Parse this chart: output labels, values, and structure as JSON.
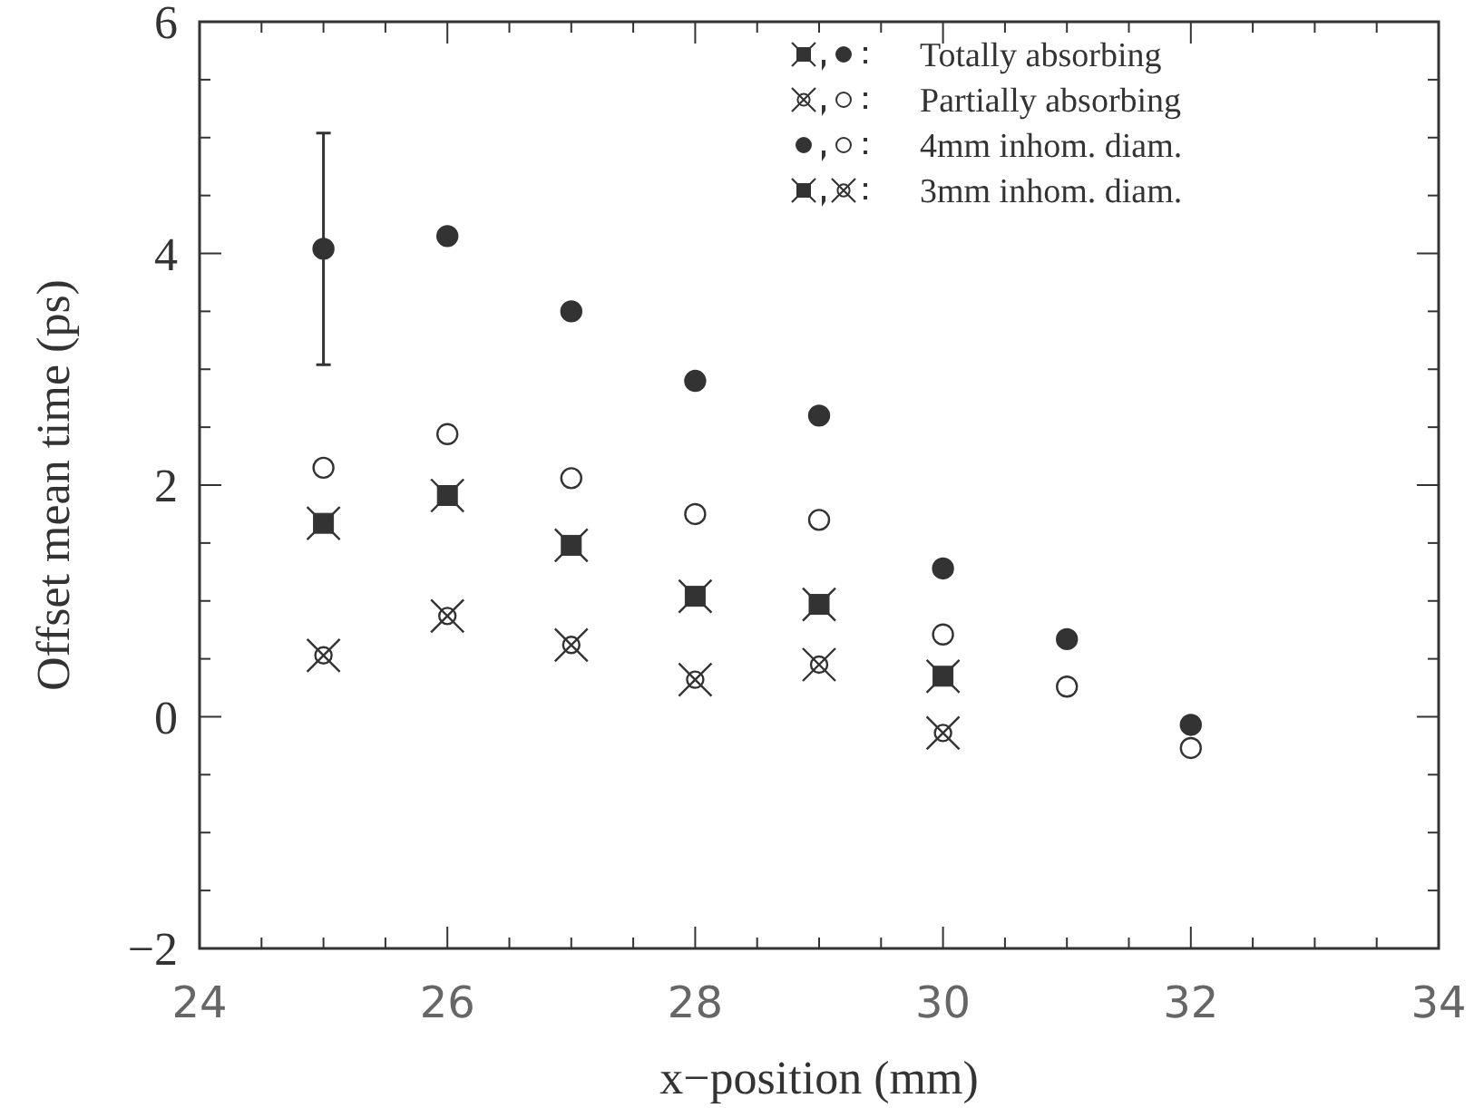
{
  "chart_data": {
    "type": "scatter",
    "xlabel": "x−position (mm)",
    "ylabel": "Offset mean time (ps)",
    "xlim": [
      24,
      34
    ],
    "ylim": [
      -2,
      6
    ],
    "xticks": [
      24,
      {
        "value": 24.5,
        "label": null
      },
      {
        "value": 25,
        "label": null
      },
      {
        "value": 25.5,
        "label": null
      },
      26,
      {
        "value": 26.5,
        "label": null
      },
      {
        "value": 27,
        "label": null
      },
      {
        "value": 27.5,
        "label": null
      },
      28,
      {
        "value": 28.5,
        "label": null
      },
      {
        "value": 29,
        "label": null
      },
      {
        "value": 29.5,
        "label": null
      },
      30,
      {
        "value": 30.5,
        "label": null
      },
      {
        "value": 31,
        "label": null
      },
      {
        "value": 31.5,
        "label": null
      },
      32,
      {
        "value": 32.5,
        "label": null
      },
      {
        "value": 33,
        "label": null
      },
      {
        "value": 33.5,
        "label": null
      },
      34
    ],
    "yticks": [
      {
        "value": -2,
        "label": "−2"
      },
      {
        "value": -1.5,
        "label": null
      },
      {
        "value": -1,
        "label": null
      },
      {
        "value": -0.5,
        "label": null
      },
      0,
      {
        "value": 0.5,
        "label": null
      },
      {
        "value": 1,
        "label": null
      },
      {
        "value": 1.5,
        "label": null
      },
      2,
      {
        "value": 2.5,
        "label": null
      },
      {
        "value": 3,
        "label": null
      },
      {
        "value": 3.5,
        "label": null
      },
      4,
      {
        "value": 4.5,
        "label": null
      },
      {
        "value": 5,
        "label": null
      },
      {
        "value": 5.5,
        "label": null
      },
      6
    ],
    "grid": false,
    "annotations": [
      "Totally absorbing",
      "Partially absorbing",
      "4mm inhom. diam.",
      "3mm inhom. diam."
    ],
    "series": [
      {
        "color": "#333333",
        "marker": "circle",
        "x": [
          25,
          26,
          27,
          28,
          29,
          30,
          31,
          32
        ],
        "values": [
          4.04,
          4.15,
          3.5,
          2.9,
          2.6,
          1.28,
          0.67,
          -0.07
        ],
        "errors": [
          1.0,
          null,
          null,
          null,
          null,
          null,
          null,
          null
        ]
      },
      {
        "color": "#ffffff",
        "marker": "circle",
        "x": [
          25,
          26,
          27,
          28,
          29,
          30,
          31,
          32
        ],
        "values": [
          2.15,
          2.44,
          2.06,
          1.75,
          1.7,
          0.71,
          0.26,
          -0.27
        ]
      },
      {
        "color": "#333333",
        "marker": "square",
        "x": [
          25,
          26,
          27,
          28,
          29,
          30
        ],
        "values": [
          1.67,
          1.91,
          1.48,
          1.04,
          0.97,
          0.35
        ]
      },
      {
        "color": "#ffffff",
        "marker": "circle",
        "x": [
          25,
          26,
          27,
          28,
          29,
          30
        ],
        "values": [
          0.53,
          0.87,
          0.62,
          0.32,
          0.45,
          -0.14
        ]
      }
    ]
  }
}
